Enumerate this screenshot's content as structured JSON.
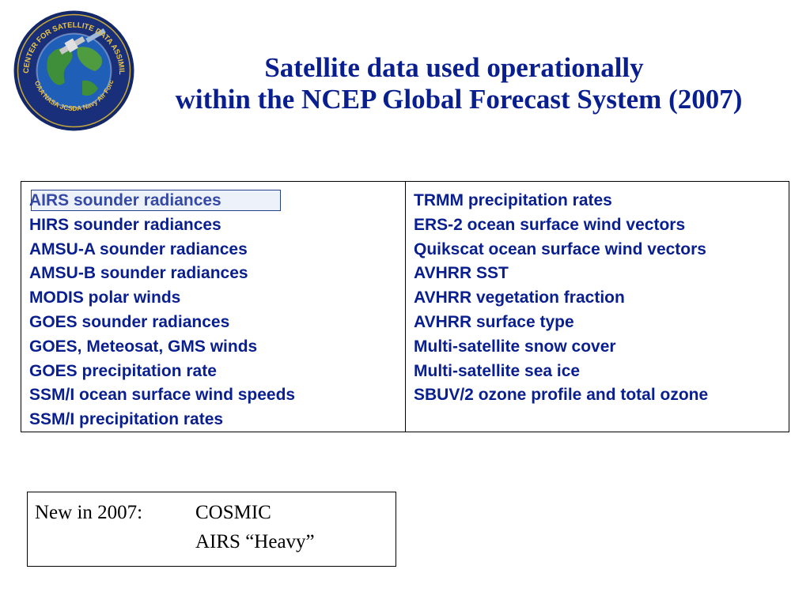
{
  "logo": {
    "ring_text_top": "JOINT CENTER FOR SATELLITE DATA ASSIMILATION",
    "ring_text_bottom": "NOAA NASA JCSDA Navy Air Force",
    "colors": {
      "ring": "#1a2f7a",
      "ocean": "#1f5fb8",
      "land": "#3f8f3a",
      "text": "#e8c547"
    }
  },
  "title": {
    "line1": "Satellite data used operationally",
    "line2": "within the NCEP Global Forecast System (2007)"
  },
  "table": {
    "left_items": [
      "AIRS sounder radiances",
      "HIRS sounder radiances",
      "AMSU-A sounder radiances",
      "AMSU-B sounder radiances",
      "MODIS polar winds",
      "GOES sounder radiances",
      "GOES, Meteosat, GMS winds",
      "GOES precipitation rate",
      "SSM/I ocean surface wind speeds",
      "SSM/I precipitation rates"
    ],
    "right_items": [
      "TRMM precipitation rates",
      "ERS-2 ocean surface wind vectors",
      "Quikscat ocean surface wind vectors",
      "AVHRR SST",
      "AVHRR vegetation fraction",
      "AVHRR surface type",
      "Multi-satellite snow cover",
      "Multi-satellite sea ice",
      "SBUV/2 ozone profile and total ozone"
    ]
  },
  "new_box": {
    "label": "New in 2007:",
    "items": [
      "COSMIC",
      "AIRS “Heavy”"
    ]
  },
  "colors": {
    "text_blue": "#0a1f8f",
    "border": "#000000"
  }
}
